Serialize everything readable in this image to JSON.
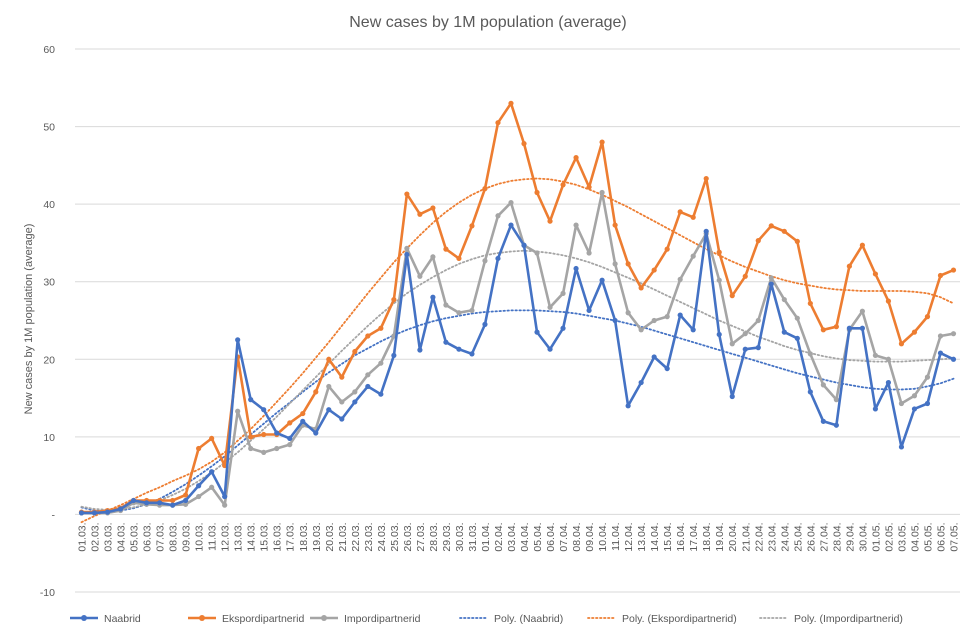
{
  "chart_data": {
    "type": "line",
    "title": "New cases by  1M population (average)",
    "ylabel": "New cases by 1M population (average)",
    "xlabel": "",
    "ylim": [
      -10,
      60
    ],
    "yticks": [
      "-10",
      "-",
      "10",
      "20",
      "30",
      "40",
      "50",
      "60"
    ],
    "ytick_values": [
      -10,
      0,
      10,
      20,
      30,
      40,
      50,
      60
    ],
    "legend_position": "bottom",
    "categories": [
      "01.03.",
      "02.03.",
      "03.03.",
      "04.03.",
      "05.03.",
      "06.03.",
      "07.03.",
      "08.03.",
      "09.03.",
      "10.03.",
      "11.03.",
      "12.03.",
      "13.03.",
      "14.03.",
      "15.03.",
      "16.03.",
      "17.03.",
      "18.03.",
      "19.03.",
      "20.03.",
      "21.03.",
      "22.03.",
      "23.03.",
      "24.03.",
      "25.03.",
      "26.03.",
      "27.03.",
      "28.03.",
      "29.03.",
      "30.03.",
      "31.03.",
      "01.04.",
      "02.04.",
      "03.04.",
      "04.04.",
      "05.04.",
      "06.04.",
      "07.04.",
      "08.04.",
      "09.04.",
      "10.04.",
      "11.04.",
      "12.04.",
      "13.04.",
      "14.04.",
      "15.04.",
      "16.04.",
      "17.04.",
      "18.04.",
      "19.04.",
      "20.04.",
      "21.04.",
      "22.04.",
      "23.04.",
      "24.04.",
      "25.04.",
      "26.04.",
      "27.04.",
      "28.04.",
      "29.04.",
      "30.04.",
      "01.05.",
      "02.05.",
      "03.05.",
      "04.05.",
      "05.05.",
      "06.05.",
      "07.05."
    ],
    "series": [
      {
        "name": "Naabrid",
        "style": "solid-markers",
        "color": "#4472C4",
        "values": [
          0.2,
          0.2,
          0.3,
          0.7,
          1.8,
          1.5,
          1.5,
          1.2,
          1.8,
          3.7,
          5.5,
          2.3,
          22.5,
          14.8,
          13.5,
          10.5,
          9.8,
          12.0,
          10.5,
          13.5,
          12.3,
          14.5,
          16.5,
          15.5,
          20.5,
          33.5,
          21.2,
          28.0,
          22.2,
          21.3,
          20.7,
          24.5,
          33.0,
          37.3,
          34.7,
          23.5,
          21.3,
          24.0,
          31.7,
          26.3,
          30.2,
          25.0,
          14.0,
          17.0,
          20.3,
          18.8,
          25.7,
          23.8,
          36.5,
          23.2,
          15.2,
          21.3,
          21.5,
          29.7,
          23.5,
          22.7,
          15.8,
          12.0,
          11.5,
          24.0,
          24.0,
          13.6,
          17.0,
          8.7,
          13.6,
          14.3,
          20.8,
          20.0
        ]
      },
      {
        "name": "Ekspordipartnerid",
        "style": "solid-markers",
        "color": "#ED7D31",
        "values": [
          0.3,
          0.3,
          0.5,
          0.8,
          1.8,
          1.8,
          1.8,
          1.8,
          2.5,
          8.5,
          9.8,
          6.3,
          20.3,
          10.0,
          10.3,
          10.3,
          11.8,
          13.0,
          15.8,
          20.0,
          17.7,
          21.0,
          23.0,
          24.0,
          27.7,
          41.3,
          38.7,
          39.5,
          34.2,
          33.0,
          37.2,
          42.0,
          50.5,
          53.0,
          47.8,
          41.5,
          37.8,
          42.5,
          46.0,
          42.2,
          48.0,
          37.3,
          32.3,
          29.2,
          31.5,
          34.2,
          39.0,
          38.3,
          43.3,
          33.8,
          28.2,
          30.7,
          35.3,
          37.2,
          36.5,
          35.2,
          27.2,
          23.8,
          24.2,
          32.0,
          34.7,
          31.0,
          27.5,
          22.0,
          23.5,
          25.5,
          30.8,
          31.5
        ]
      },
      {
        "name": "Impordipartnerid",
        "style": "solid-markers",
        "color": "#A5A5A5",
        "values": [
          0.2,
          0.2,
          0.2,
          0.5,
          1.5,
          1.3,
          1.2,
          1.2,
          1.3,
          2.3,
          3.5,
          1.2,
          13.3,
          8.5,
          8.0,
          8.5,
          9.0,
          11.5,
          11.0,
          16.5,
          14.5,
          15.8,
          18.0,
          19.5,
          23.0,
          34.3,
          30.7,
          33.2,
          27.0,
          26.0,
          26.3,
          32.7,
          38.5,
          40.2,
          34.7,
          33.7,
          26.7,
          28.5,
          37.3,
          33.7,
          41.5,
          32.3,
          26.0,
          23.8,
          25.0,
          25.5,
          30.3,
          33.3,
          36.2,
          30.2,
          22.0,
          23.3,
          25.0,
          30.5,
          27.7,
          25.3,
          20.7,
          16.7,
          14.8,
          23.8,
          26.2,
          20.5,
          20.0,
          14.3,
          15.3,
          17.7,
          23.0,
          23.3
        ]
      },
      {
        "name": "Poly. (Naabrid)",
        "style": "dotted-trend",
        "color": "#4472C4",
        "values": [
          0.9,
          0.5,
          0.4,
          0.5,
          0.8,
          1.3,
          2.0,
          2.9,
          3.9,
          5.0,
          6.2,
          7.5,
          8.9,
          10.3,
          11.7,
          13.1,
          14.4,
          15.8,
          17.1,
          18.3,
          19.4,
          20.5,
          21.4,
          22.3,
          23.1,
          23.8,
          24.4,
          24.9,
          25.3,
          25.6,
          25.9,
          26.1,
          26.2,
          26.3,
          26.3,
          26.3,
          26.2,
          26.1,
          25.9,
          25.6,
          25.3,
          25.0,
          24.6,
          24.2,
          23.7,
          23.2,
          22.7,
          22.2,
          21.7,
          21.2,
          20.7,
          20.2,
          19.7,
          19.2,
          18.7,
          18.2,
          17.8,
          17.4,
          17.0,
          16.7,
          16.4,
          16.2,
          16.1,
          16.1,
          16.2,
          16.5,
          16.9,
          17.5
        ]
      },
      {
        "name": "Poly. (Ekspordipartnerid)",
        "style": "dotted-trend",
        "color": "#ED7D31",
        "values": [
          -1.0,
          -0.2,
          0.5,
          1.2,
          2.0,
          2.8,
          3.5,
          4.3,
          5.0,
          5.8,
          6.8,
          8.0,
          9.5,
          11.0,
          12.7,
          14.5,
          16.3,
          18.2,
          20.2,
          22.2,
          24.3,
          26.4,
          28.5,
          30.5,
          32.5,
          34.3,
          36.0,
          37.6,
          39.0,
          40.2,
          41.2,
          42.0,
          42.6,
          43.0,
          43.2,
          43.3,
          43.2,
          42.9,
          42.5,
          41.9,
          41.2,
          40.4,
          39.6,
          38.7,
          37.8,
          36.9,
          36.0,
          35.1,
          34.2,
          33.4,
          32.6,
          31.9,
          31.3,
          30.7,
          30.2,
          29.8,
          29.5,
          29.2,
          29.0,
          28.9,
          28.8,
          28.8,
          28.8,
          28.8,
          28.7,
          28.5,
          28.0,
          27.2
        ]
      },
      {
        "name": "Poly. (Impordipartnerid)",
        "style": "dotted-trend",
        "color": "#A5A5A5",
        "values": [
          1.0,
          0.7,
          0.6,
          0.7,
          0.9,
          1.3,
          1.8,
          2.5,
          3.3,
          4.3,
          5.4,
          6.7,
          8.0,
          9.5,
          11.0,
          12.6,
          14.3,
          16.0,
          17.7,
          19.4,
          21.1,
          22.7,
          24.3,
          25.8,
          27.2,
          28.5,
          29.6,
          30.6,
          31.5,
          32.3,
          32.9,
          33.4,
          33.7,
          33.9,
          34.0,
          33.9,
          33.7,
          33.4,
          33.0,
          32.5,
          31.9,
          31.2,
          30.5,
          29.8,
          29.0,
          28.2,
          27.4,
          26.6,
          25.8,
          25.0,
          24.3,
          23.6,
          22.9,
          22.3,
          21.7,
          21.2,
          20.8,
          20.4,
          20.1,
          19.9,
          19.8,
          19.7,
          19.7,
          19.7,
          19.8,
          19.9,
          20.0,
          20.1
        ]
      }
    ]
  }
}
